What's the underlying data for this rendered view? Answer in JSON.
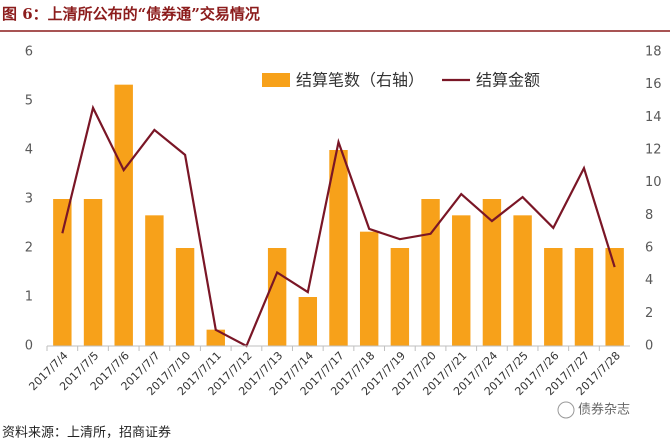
{
  "chart_data": {
    "type": "bar",
    "title": "图 6：上清所公布的“债券通”交易情况",
    "source": "资料来源：上清所，招商证券",
    "watermark": "债券杂志",
    "categories": [
      "2017/7/4",
      "2017/7/5",
      "2017/7/6",
      "2017/7/7",
      "2017/7/10",
      "2017/7/11",
      "2017/7/12",
      "2017/7/13",
      "2017/7/14",
      "2017/7/17",
      "2017/7/18",
      "2017/7/19",
      "2017/7/20",
      "2017/7/21",
      "2017/7/24",
      "2017/7/25",
      "2017/7/26",
      "2017/7/27",
      "2017/7/28"
    ],
    "series": [
      {
        "name": "结算笔数（右轴）",
        "type": "bar",
        "axis": "y2",
        "color": "#f7a11a",
        "values": [
          9,
          9,
          16,
          8,
          6,
          1,
          0,
          6,
          3,
          12,
          7,
          6,
          9,
          8,
          9,
          8,
          6,
          6,
          6
        ]
      },
      {
        "name": "结算金额",
        "type": "line",
        "color": "#7a1626",
        "values": [
          2.3,
          4.86,
          3.59,
          4.41,
          3.9,
          0.33,
          0,
          1.5,
          1.1,
          4.16,
          2.39,
          2.18,
          2.29,
          3.1,
          2.55,
          3.04,
          2.41,
          3.63,
          1.61
        ]
      }
    ],
    "ylim": [
      0,
      6
    ],
    "yticks": [
      0,
      1,
      2,
      3,
      4,
      5,
      6
    ],
    "y2lim": [
      0,
      18
    ],
    "y2ticks": [
      0,
      2,
      4,
      6,
      8,
      10,
      12,
      14,
      16,
      18
    ],
    "grid": false
  }
}
